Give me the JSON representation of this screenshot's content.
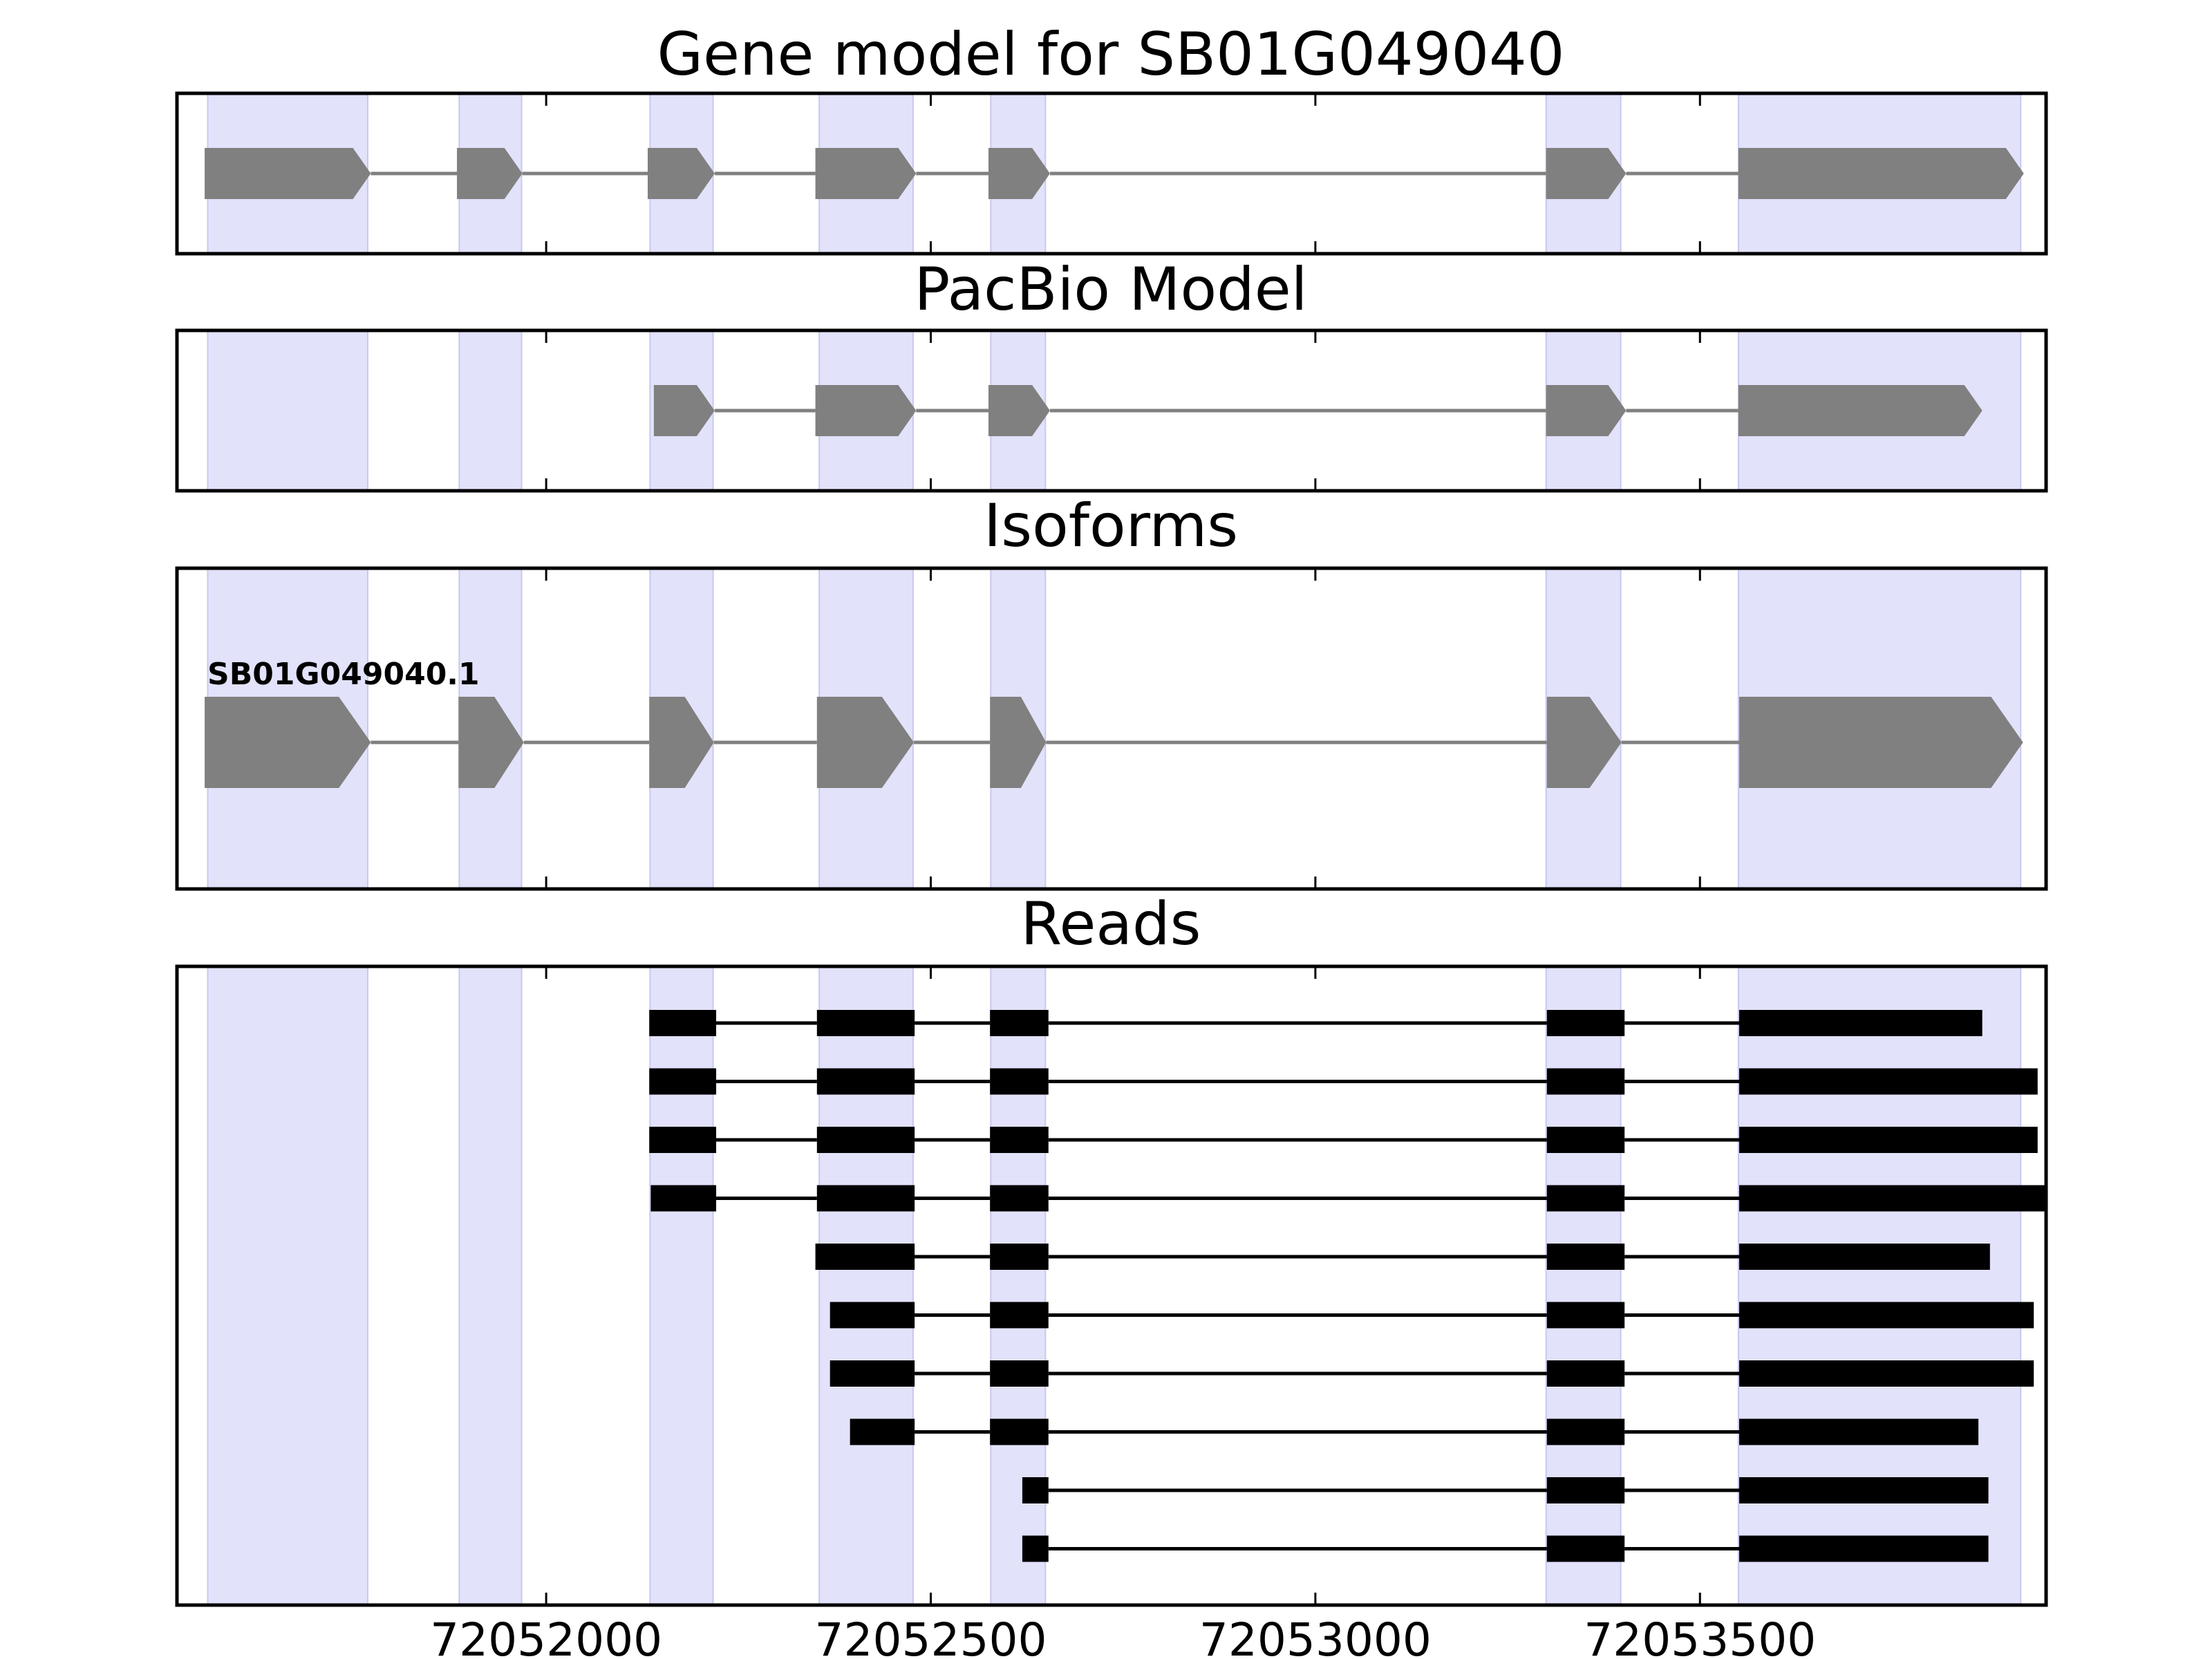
{
  "chart_data": {
    "type": "gene-structure",
    "x_range": [
      72051520,
      72053950
    ],
    "x_ticks": [
      72052000,
      72052500,
      72053000,
      72053500
    ],
    "x_tick_labels": [
      "72052000",
      "72052500",
      "72053000",
      "72053500"
    ],
    "highlight_color": "#e2e2fb",
    "feature_color": "#808080",
    "read_color": "#000000",
    "highlight_regions": [
      [
        72051560,
        72051768
      ],
      [
        72051887,
        72051968
      ],
      [
        72052135,
        72052217
      ],
      [
        72052355,
        72052477
      ],
      [
        72052578,
        72052649
      ],
      [
        72053300,
        72053397
      ],
      [
        72053550,
        72053917
      ]
    ],
    "panels": [
      {
        "title": "Gene model for SB01G049040",
        "exons": [
          [
            72051556,
            72051772
          ],
          [
            72051884,
            72051969
          ],
          [
            72052132,
            72052219
          ],
          [
            72052350,
            72052481
          ],
          [
            72052575,
            72052655
          ],
          [
            72053300,
            72053404
          ],
          [
            72053550,
            72053921
          ]
        ]
      },
      {
        "title": "PacBio Model",
        "exons": [
          [
            72052140,
            72052219
          ],
          [
            72052350,
            72052481
          ],
          [
            72052575,
            72052655
          ],
          [
            72053300,
            72053404
          ],
          [
            72053550,
            72053867
          ]
        ]
      },
      {
        "title": "Isoforms",
        "isoform_label": "SB01G049040.1",
        "exons": [
          [
            72051556,
            72051772
          ],
          [
            72051886,
            72051971
          ],
          [
            72052134,
            72052218
          ],
          [
            72052352,
            72052478
          ],
          [
            72052577,
            72052650
          ],
          [
            72053301,
            72053398
          ],
          [
            72053551,
            72053920
          ]
        ]
      },
      {
        "title": "Reads",
        "reads": [
          [
            [
              72052134,
              72052221
            ],
            [
              72052352,
              72052479
            ],
            [
              72052577,
              72052653
            ],
            [
              72053301,
              72053402
            ],
            [
              72053551,
              72053867
            ]
          ],
          [
            [
              72052134,
              72052221
            ],
            [
              72052352,
              72052479
            ],
            [
              72052577,
              72052653
            ],
            [
              72053301,
              72053402
            ],
            [
              72053551,
              72053939
            ]
          ],
          [
            [
              72052134,
              72052221
            ],
            [
              72052352,
              72052479
            ],
            [
              72052577,
              72052653
            ],
            [
              72053301,
              72053402
            ],
            [
              72053551,
              72053939
            ]
          ],
          [
            [
              72052136,
              72052221
            ],
            [
              72052352,
              72052479
            ],
            [
              72052577,
              72052653
            ],
            [
              72053301,
              72053402
            ],
            [
              72053551,
              72053950
            ]
          ],
          [
            [
              72052350,
              72052479
            ],
            [
              72052577,
              72052653
            ],
            [
              72053301,
              72053402
            ],
            [
              72053551,
              72053877
            ]
          ],
          [
            [
              72052369,
              72052479
            ],
            [
              72052577,
              72052653
            ],
            [
              72053301,
              72053402
            ],
            [
              72053551,
              72053934
            ]
          ],
          [
            [
              72052369,
              72052479
            ],
            [
              72052577,
              72052653
            ],
            [
              72053301,
              72053402
            ],
            [
              72053551,
              72053934
            ]
          ],
          [
            [
              72052395,
              72052479
            ],
            [
              72052577,
              72052653
            ],
            [
              72053301,
              72053402
            ],
            [
              72053551,
              72053862
            ]
          ],
          [
            [
              72052619,
              72052653
            ],
            [
              72053301,
              72053402
            ],
            [
              72053551,
              72053875
            ]
          ],
          [
            [
              72052619,
              72052653
            ],
            [
              72053301,
              72053402
            ],
            [
              72053551,
              72053875
            ]
          ]
        ]
      }
    ]
  }
}
